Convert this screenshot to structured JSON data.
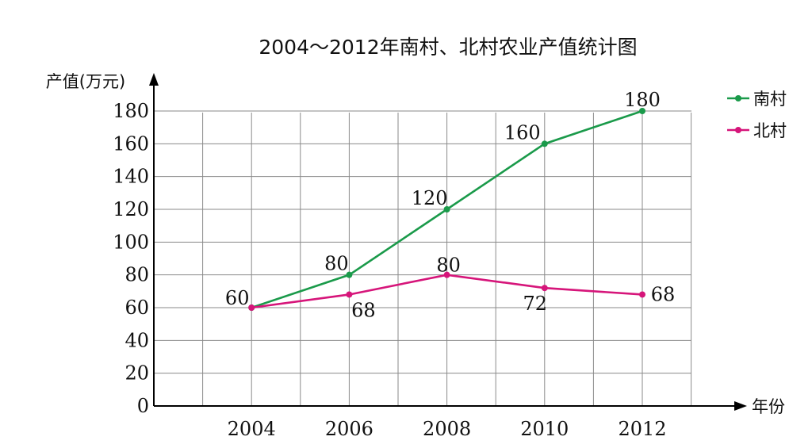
{
  "chart_data": {
    "type": "line",
    "title": "2004～2012年南村、北村农业产值统计图",
    "ylabel": "产值(万元)",
    "xlabel": "年份",
    "categories": [
      "2004",
      "2006",
      "2008",
      "2010",
      "2012"
    ],
    "yticks": [
      "0",
      "20",
      "40",
      "60",
      "80",
      "100",
      "120",
      "140",
      "160",
      "180"
    ],
    "ylim": [
      0,
      180
    ],
    "grid": true,
    "legend_position": "top-right",
    "series": [
      {
        "name": "南村",
        "color": "#1a9a4a",
        "values": [
          60,
          80,
          120,
          160,
          180
        ],
        "labels": [
          "60",
          "80",
          "120",
          "160",
          "180"
        ]
      },
      {
        "name": "北村",
        "color": "#d6157a",
        "values": [
          60,
          68,
          80,
          72,
          68
        ],
        "labels": [
          "",
          "68",
          "80",
          "72",
          "68"
        ]
      }
    ]
  }
}
